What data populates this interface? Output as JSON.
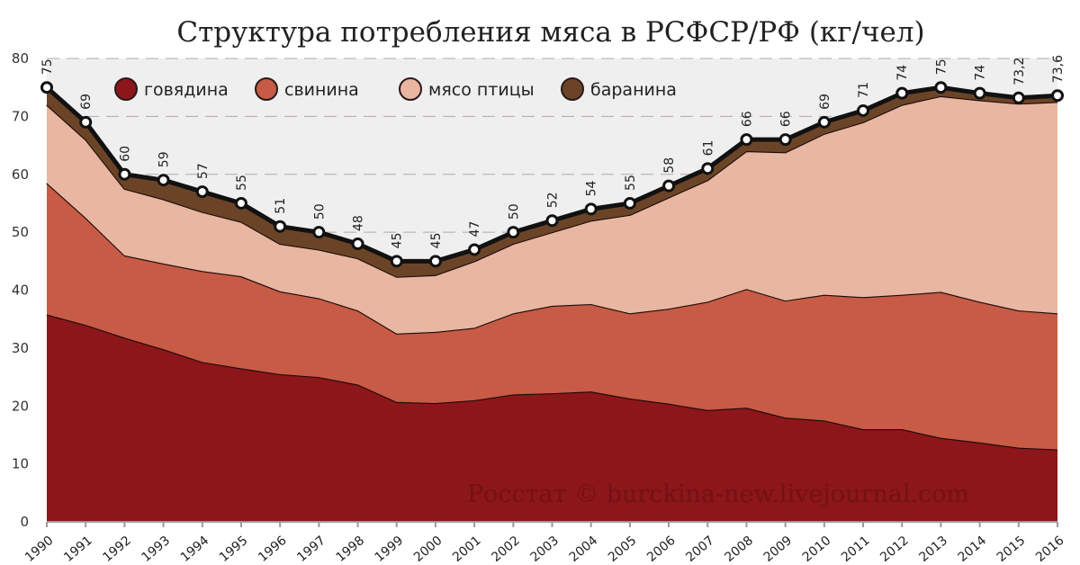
{
  "chart_data": {
    "type": "area",
    "stacked": true,
    "title": "Структура потребления мяса в РСФСР/РФ (кг/чел)",
    "watermark": "Росстат © burckina-new.livejournal.com",
    "xlabel": "",
    "ylabel": "",
    "ylim": [
      0,
      80
    ],
    "yticks": [
      0,
      10,
      20,
      30,
      40,
      50,
      60,
      70,
      80
    ],
    "grid": true,
    "legend_position": "top-left",
    "categories": [
      "1990",
      "1991",
      "1992",
      "1993",
      "1994",
      "1995",
      "1996",
      "1997",
      "1998",
      "1999",
      "2000",
      "2001",
      "2002",
      "2003",
      "2004",
      "2005",
      "2006",
      "2007",
      "2008",
      "2009",
      "2010",
      "2011",
      "2012",
      "2013",
      "2014",
      "2015",
      "2016"
    ],
    "series": [
      {
        "name": "говядина",
        "color": "#8c1619",
        "values": [
          35.8,
          34,
          31.8,
          29.8,
          27.6,
          26.5,
          25.5,
          25,
          23.7,
          20.7,
          20.5,
          21,
          22,
          22.2,
          22.5,
          21.3,
          20.4,
          19.3,
          19.7,
          18,
          17.5,
          16,
          16,
          14.5,
          13.7,
          12.8,
          12.5
        ]
      },
      {
        "name": "свинина",
        "color": "#c75b45",
        "values": [
          22.7,
          18.5,
          14.2,
          14.8,
          15.7,
          15.9,
          14.3,
          13.6,
          12.8,
          11.8,
          12.3,
          12.5,
          14,
          15.1,
          15.1,
          14.7,
          16.4,
          18.7,
          20.5,
          20.2,
          21.7,
          22.8,
          23.2,
          25.2,
          24.3,
          23.7,
          23.5
        ]
      },
      {
        "name": "мясо птицы",
        "color": "#e8b6a1",
        "values": [
          13.5,
          13.5,
          11.5,
          11.1,
          10.2,
          9.4,
          8.2,
          8.4,
          9,
          9.8,
          9.8,
          11.5,
          12,
          12.7,
          14.4,
          17,
          19.2,
          21,
          23.8,
          25.6,
          27.8,
          30.2,
          32.8,
          33.8,
          34.8,
          35.7,
          36.5
        ]
      },
      {
        "name": "баранина",
        "color": "#6b4427",
        "values": [
          3,
          3,
          2.5,
          3.3,
          3.5,
          3.2,
          3,
          3,
          2.5,
          2.7,
          2.4,
          2,
          2,
          2,
          2,
          2,
          2,
          2,
          2,
          2.2,
          2,
          2,
          2,
          1.5,
          1.2,
          1,
          1.1
        ]
      }
    ],
    "totals": [
      75,
      69,
      60,
      59,
      57,
      55,
      51,
      50,
      48,
      45,
      45,
      47,
      50,
      52,
      54,
      55,
      58,
      61,
      66,
      66,
      69,
      71,
      74,
      75,
      74,
      73.2,
      73.6
    ],
    "total_labels": [
      "75",
      "69",
      "60",
      "59",
      "57",
      "55",
      "51",
      "50",
      "48",
      "45",
      "45",
      "47",
      "50",
      "52",
      "54",
      "55",
      "58",
      "61",
      "66",
      "66",
      "69",
      "71",
      "74",
      "75",
      "74",
      "73,2",
      "73,6"
    ]
  }
}
